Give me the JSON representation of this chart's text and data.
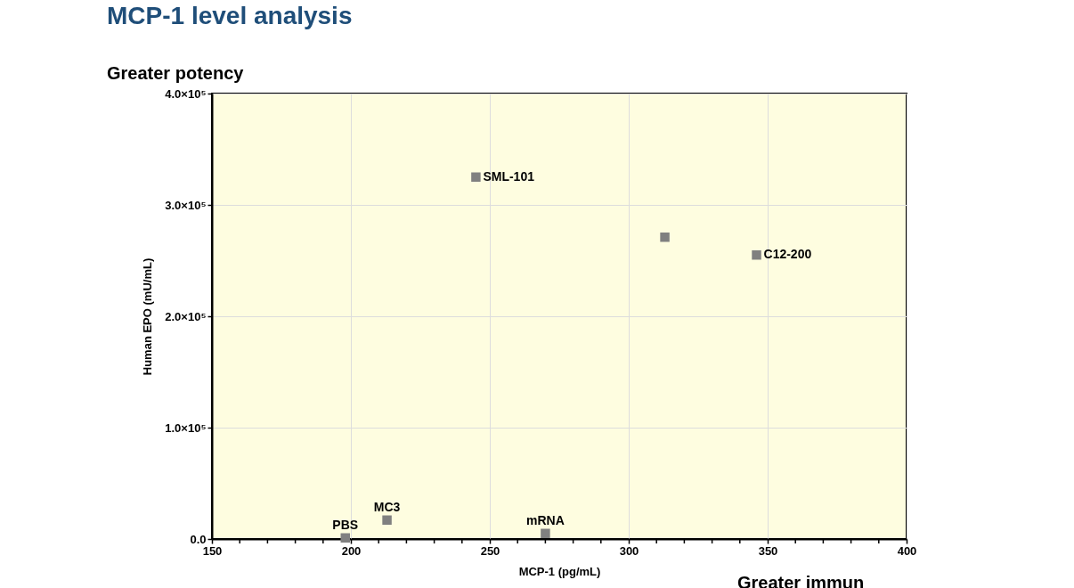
{
  "chart_data": {
    "type": "scatter",
    "title": "MCP-1 level analysis",
    "xlabel": "MCP-1 (pg/mL)",
    "ylabel": "Human EPO (mU/mL)",
    "xlim": [
      150,
      400
    ],
    "ylim": [
      0,
      400000
    ],
    "xticks": [
      150,
      {
        "value": 160,
        "label": null
      },
      {
        "value": 170,
        "label": null
      },
      {
        "value": 180,
        "label": null
      },
      {
        "value": 190,
        "label": null
      },
      200,
      {
        "value": 210,
        "label": null
      },
      {
        "value": 220,
        "label": null
      },
      {
        "value": 230,
        "label": null
      },
      {
        "value": 240,
        "label": null
      },
      250,
      {
        "value": 260,
        "label": null
      },
      {
        "value": 270,
        "label": null
      },
      {
        "value": 280,
        "label": null
      },
      {
        "value": 290,
        "label": null
      },
      300,
      {
        "value": 310,
        "label": null
      },
      {
        "value": 320,
        "label": null
      },
      {
        "value": 330,
        "label": null
      },
      {
        "value": 340,
        "label": null
      },
      350,
      {
        "value": 360,
        "label": null
      },
      {
        "value": 370,
        "label": null
      },
      {
        "value": 380,
        "label": null
      },
      {
        "value": 390,
        "label": null
      },
      400
    ],
    "yticks": [
      {
        "value": 0,
        "label": "0.0"
      },
      {
        "value": 100000,
        "label": "1.0×10⁵"
      },
      {
        "value": 200000,
        "label": "2.0×10⁵"
      },
      {
        "value": 300000,
        "label": "3.0×10⁵"
      },
      {
        "value": 400000,
        "label": "4.0×10⁵"
      }
    ],
    "grid": true,
    "marker": "square",
    "series": [
      {
        "name": "SML-101",
        "color": "#808080",
        "x": [
          245
        ],
        "values": [
          325000
        ]
      },
      {
        "color": "#808080",
        "x": [
          313
        ],
        "values": [
          271000
        ]
      },
      {
        "name": "C12-200",
        "color": "#808080",
        "x": [
          346
        ],
        "values": [
          255000
        ]
      },
      {
        "name": "PBS",
        "color": "#808080",
        "x": [
          198
        ],
        "values": [
          1000
        ]
      },
      {
        "name": "MC3",
        "color": "#808080",
        "x": [
          213
        ],
        "values": [
          17000
        ]
      },
      {
        "name": "mRNA",
        "color": "#808080",
        "x": [
          270
        ],
        "values": [
          5000
        ]
      }
    ],
    "annotations": [
      "Greater potency",
      "Greater immun"
    ]
  }
}
